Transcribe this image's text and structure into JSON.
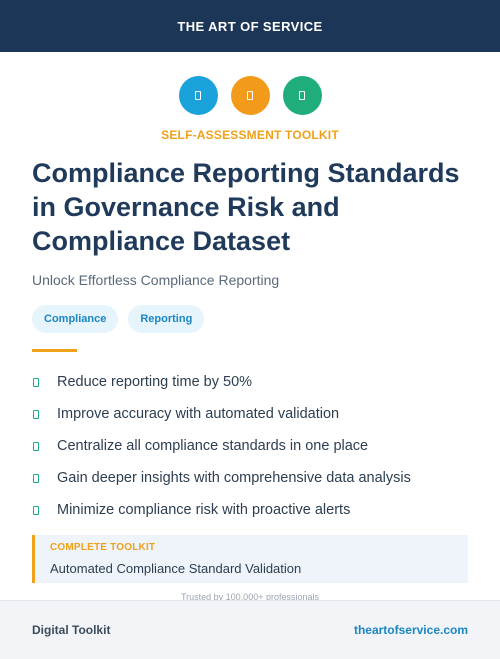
{
  "header": {
    "brand": "THE ART OF SERVICE"
  },
  "icons": [
    {
      "name": "document-icon",
      "color": "#1aa3db"
    },
    {
      "name": "document-icon",
      "color": "#f29a1a"
    },
    {
      "name": "document-icon",
      "color": "#1fae7a"
    }
  ],
  "kicker": "SELF-ASSESSMENT TOOLKIT",
  "title": "Compliance Reporting Standards in Governance Risk and Compliance Dataset",
  "subtitle": "Unlock Effortless Compliance Reporting",
  "tags": [
    "Compliance",
    "Reporting"
  ],
  "benefits": [
    "Reduce reporting time by 50%",
    "Improve accuracy with automated validation",
    "Centralize all compliance standards in one place",
    "Gain deeper insights with comprehensive data analysis",
    "Minimize compliance risk with proactive alerts"
  ],
  "callout": {
    "label": "COMPLETE TOOLKIT",
    "text": "Automated Compliance Standard Validation"
  },
  "trusted": "Trusted by 100,000+ professionals",
  "footer": {
    "left": "Digital Toolkit",
    "right": "theartofservice.com"
  },
  "colors": {
    "navy": "#1c3657",
    "accent": "#f0a11a",
    "link": "#1a86c2",
    "check": "#21b07a"
  }
}
